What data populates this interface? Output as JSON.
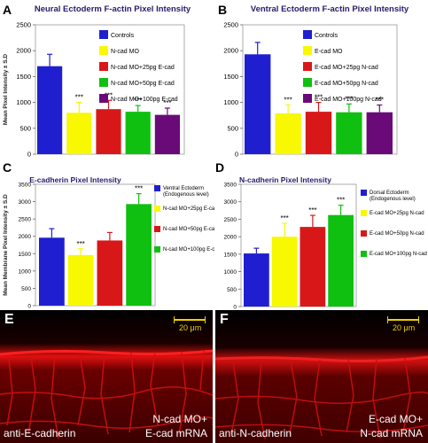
{
  "colors": {
    "blue": "#1f1fd0",
    "yellow": "#f8f800",
    "red": "#d81818",
    "green": "#10c010",
    "purple": "#6a0a78",
    "title": "#2a1a6a"
  },
  "chart_data": [
    {
      "type": "bar",
      "letter": "A",
      "title": "Neural Ectoderm F-actin Pixel Intensity",
      "ylabel": "Mean Pixel Intensity ± S.D",
      "ylim": [
        0,
        2500
      ],
      "yticks": [
        0,
        500,
        1000,
        1500,
        2000,
        2500
      ],
      "categories": [
        "Controls",
        "N-cad MO",
        "N-cad MO+25pg E-cad",
        "N-cad MO+50pg E-cad",
        "N-cad MO+100pg E-cad"
      ],
      "values": [
        1700,
        800,
        870,
        820,
        760
      ],
      "errors": [
        230,
        200,
        170,
        120,
        130
      ],
      "significance": [
        "",
        "***",
        "***",
        "***",
        "***"
      ],
      "colors": [
        "#1f1fd0",
        "#f8f800",
        "#d81818",
        "#10c010",
        "#6a0a78"
      ]
    },
    {
      "type": "bar",
      "letter": "B",
      "title": "Ventral Ectoderm F-actin Pixel Intensity",
      "ylabel": "",
      "ylim": [
        0,
        2500
      ],
      "yticks": [
        0,
        500,
        1000,
        1500,
        2000,
        2500
      ],
      "categories": [
        "Controls",
        "E-cad MO",
        "E-cad MO+25pg N-cad",
        "E-cad MO+50pg N-cad",
        "E-cad MO+100pg N-cad"
      ],
      "values": [
        1930,
        790,
        820,
        810,
        810
      ],
      "errors": [
        230,
        160,
        180,
        160,
        140
      ],
      "significance": [
        "",
        "***",
        "***",
        "***",
        "***"
      ],
      "colors": [
        "#1f1fd0",
        "#f8f800",
        "#d81818",
        "#10c010",
        "#6a0a78"
      ]
    },
    {
      "type": "bar",
      "letter": "C",
      "title": "E-cadherin Pixel Intensity",
      "ylabel": "Mean Membrane Pixel Intensity ± S.D",
      "ylim": [
        0,
        3500
      ],
      "yticks": [
        0,
        500,
        1000,
        1500,
        2000,
        2500,
        3000,
        3500
      ],
      "categories": [
        "Ventral Ectoderm (Endogenous level)",
        "N-cad MO+25pg E-cad",
        "N-cad MO+50pg E-cad",
        "N-cad MO+100pg E-cad"
      ],
      "values": [
        1960,
        1460,
        1880,
        2930
      ],
      "errors": [
        260,
        180,
        230,
        300
      ],
      "significance": [
        "",
        "***",
        "",
        "***"
      ],
      "colors": [
        "#1f1fd0",
        "#f8f800",
        "#d81818",
        "#10c010"
      ]
    },
    {
      "type": "bar",
      "letter": "D",
      "title": "N-cadherin Pixel Intensity",
      "ylabel": "",
      "ylim": [
        0,
        3500
      ],
      "yticks": [
        0,
        500,
        1000,
        1500,
        2000,
        2500,
        3000,
        3500
      ],
      "categories": [
        "Dorsal Ectoderm (Endogenous level)",
        "E-cad MO+25pg N-cad",
        "E-cad MO+50pg N-cad",
        "E-cad MO+100pg N-cad"
      ],
      "values": [
        1520,
        2000,
        2280,
        2620
      ],
      "errors": [
        150,
        380,
        330,
        280
      ],
      "significance": [
        "",
        "***",
        "***",
        "***"
      ],
      "colors": [
        "#1f1fd0",
        "#f8f800",
        "#d81818",
        "#10c010"
      ]
    }
  ],
  "images": [
    {
      "letter": "E",
      "scale_label": "20 μm",
      "left_label": "anti-E-cadherin",
      "right_label_1": "N-cad MO+",
      "right_label_2": "E-cad mRNA"
    },
    {
      "letter": "F",
      "scale_label": "20 μm",
      "left_label": "anti-N-cadherin",
      "right_label_1": "E-cad MO+",
      "right_label_2": "N-cad mRNA"
    }
  ]
}
